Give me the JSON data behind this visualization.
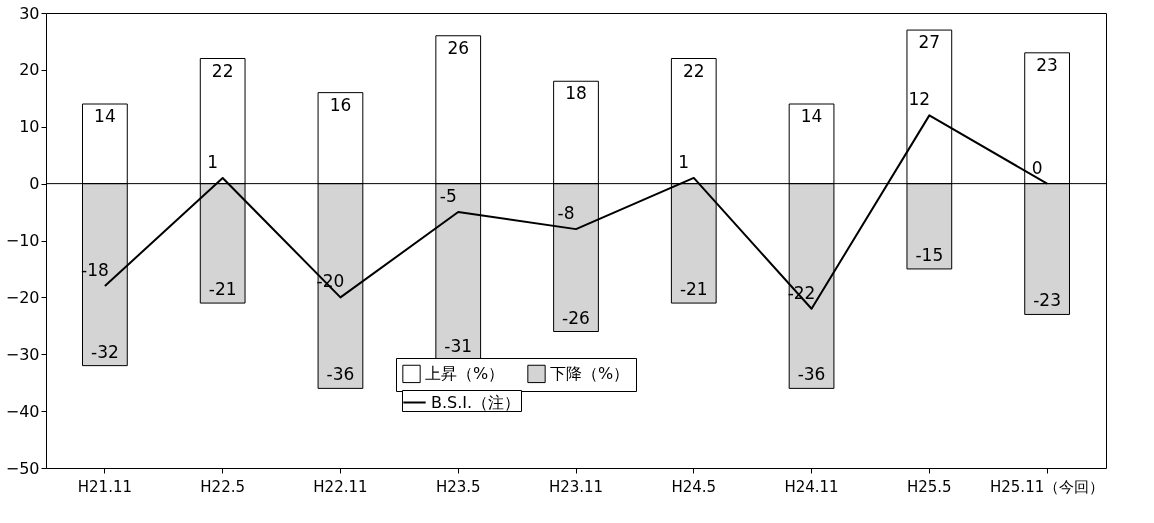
{
  "chart_data": {
    "type": "bar",
    "categories": [
      "H21.11",
      "H22.5",
      "H22.11",
      "H23.5",
      "H23.11",
      "H24.5",
      "H24.11",
      "H25.5",
      "H25.11（今回）"
    ],
    "series": [
      {
        "name": "上昇（%）",
        "color": "#ffffff",
        "values": [
          14,
          22,
          16,
          26,
          18,
          22,
          14,
          27,
          23
        ]
      },
      {
        "name": "下降（%）",
        "color": "#d4d4d4",
        "values": [
          -32,
          -21,
          -36,
          -31,
          -26,
          -21,
          -36,
          -15,
          -23
        ]
      },
      {
        "name": "B.S.I.（注）",
        "type": "line",
        "color": "#000000",
        "values": [
          -18,
          1,
          -20,
          -5,
          -8,
          1,
          -22,
          12,
          0
        ]
      }
    ],
    "ylim": [
      -50,
      30
    ],
    "yticks": [
      -50,
      -40,
      -30,
      -20,
      -10,
      0,
      10,
      20,
      30
    ],
    "data_labels": true,
    "stacked": true,
    "legend": "bottom",
    "grid": false,
    "marker": "none",
    "line_style": "solid",
    "ref_lines": [
      {
        "axis": "y",
        "value": 0,
        "color": "#000000"
      }
    ]
  }
}
